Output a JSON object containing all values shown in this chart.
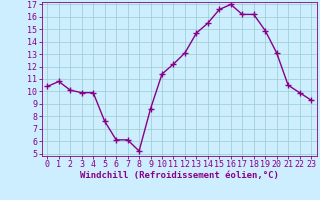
{
  "x": [
    0,
    1,
    2,
    3,
    4,
    5,
    6,
    7,
    8,
    9,
    10,
    11,
    12,
    13,
    14,
    15,
    16,
    17,
    18,
    19,
    20,
    21,
    22,
    23
  ],
  "y": [
    10.4,
    10.8,
    10.1,
    9.9,
    9.9,
    7.6,
    6.1,
    6.1,
    5.2,
    8.6,
    11.4,
    12.2,
    13.1,
    14.7,
    15.5,
    16.6,
    17.0,
    16.2,
    16.2,
    14.9,
    13.1,
    10.5,
    9.9,
    9.3
  ],
  "line_color": "#880088",
  "marker": "+",
  "marker_size": 4,
  "xlabel": "Windchill (Refroidissement éolien,°C)",
  "xlabel_fontsize": 6.5,
  "ylim": [
    5,
    17
  ],
  "xlim": [
    -0.5,
    23.5
  ],
  "yticks": [
    5,
    6,
    7,
    8,
    9,
    10,
    11,
    12,
    13,
    14,
    15,
    16,
    17
  ],
  "xticks": [
    0,
    1,
    2,
    3,
    4,
    5,
    6,
    7,
    8,
    9,
    10,
    11,
    12,
    13,
    14,
    15,
    16,
    17,
    18,
    19,
    20,
    21,
    22,
    23
  ],
  "bg_color": "#cceeff",
  "grid_color": "#99cccc",
  "tick_fontsize": 6,
  "line_width": 1.0,
  "marker_edge_width": 1.0
}
